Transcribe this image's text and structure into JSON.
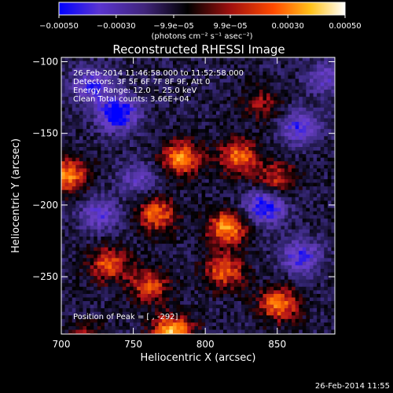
{
  "chart_data": {
    "type": "heatmap",
    "title": "Reconstructed RHESSI Image",
    "xlabel": "Heliocentric X (arcsec)",
    "ylabel": "Heliocentric Y (arcsec)",
    "xlim": [
      700,
      890
    ],
    "ylim": [
      -290,
      -97
    ],
    "xticks": [
      700,
      750,
      800,
      850
    ],
    "yticks": [
      -100,
      -150,
      -200,
      -250
    ],
    "colorbar": {
      "range": [
        -0.0005,
        0.0005
      ],
      "tick_values": [
        -0.0005,
        -0.0003,
        -9.9e-05,
        9.9e-05,
        0.0003,
        0.0005
      ],
      "tick_labels": [
        "−0.00050",
        "−0.00030",
        "−9.9e−05",
        "9.9e−05",
        "0.00030",
        "0.00050"
      ],
      "units_label": "(photons cm⁻² s⁻¹ asec⁻²)"
    },
    "annotations": {
      "time_range": "26-Feb-2014 11:46:58.000 to 11:52:58.000",
      "detectors": "Detectors: 3F 5F 6F 7F 8F 9F, Att 0",
      "energy": "Energy Range: 12.0 − 25.0 keV",
      "clean": "Clean    Total counts: 3.66E+04",
      "peak": "Position of Peak = [     ,  -292]"
    },
    "footer_timestamp": "26-Feb-2014 11:55",
    "colormap_stops": [
      "#0000ff",
      "#6b3fc8",
      "#3a2a80",
      "#000000",
      "#b0101a",
      "#ff6a00",
      "#ffd23a",
      "#ffffff"
    ],
    "features": [
      {
        "x": 782,
        "y": -166,
        "value": 0.0004
      },
      {
        "x": 765,
        "y": -205,
        "value": 0.00035
      },
      {
        "x": 822,
        "y": -165,
        "value": 0.00036
      },
      {
        "x": 814,
        "y": -215,
        "value": 0.00042
      },
      {
        "x": 812,
        "y": -245,
        "value": 0.00033
      },
      {
        "x": 703,
        "y": -178,
        "value": 0.0004
      },
      {
        "x": 732,
        "y": -240,
        "value": 0.00032
      },
      {
        "x": 760,
        "y": -255,
        "value": 0.0003
      },
      {
        "x": 776,
        "y": -288,
        "value": 0.0005
      },
      {
        "x": 850,
        "y": -268,
        "value": 0.00038
      },
      {
        "x": 848,
        "y": -180,
        "value": 0.00026
      },
      {
        "x": 838,
        "y": -128,
        "value": 0.00018
      },
      {
        "x": 715,
        "y": -295,
        "value": 0.00024
      },
      {
        "x": 738,
        "y": -135,
        "value": -0.00045
      },
      {
        "x": 720,
        "y": -115,
        "value": -0.0003
      },
      {
        "x": 840,
        "y": -200,
        "value": -0.0004
      },
      {
        "x": 865,
        "y": -145,
        "value": -0.0003
      },
      {
        "x": 752,
        "y": -180,
        "value": -0.0002
      },
      {
        "x": 865,
        "y": -235,
        "value": -0.0003
      },
      {
        "x": 725,
        "y": -205,
        "value": -0.00025
      },
      {
        "x": 882,
        "y": -110,
        "value": -0.00022
      }
    ]
  }
}
